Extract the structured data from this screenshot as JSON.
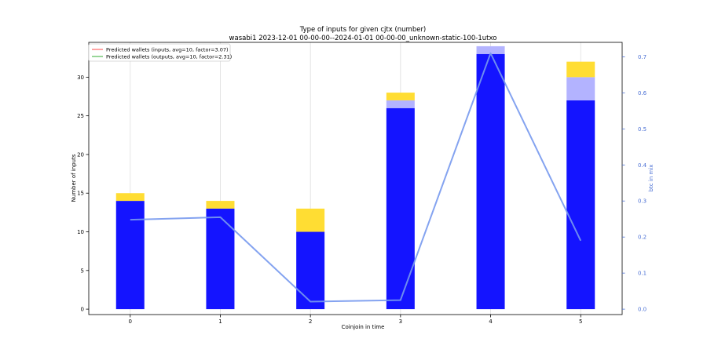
{
  "chart_data": {
    "type": "bar",
    "title": "Type of inputs for given cjtx (number)",
    "subtitle": "wasabi1 2023-12-01 00-00-00--2024-01-01 00-00-00_unknown-static-100-1utxo",
    "xlabel": "Coinjoin in time",
    "ylabel": "Number of inputs",
    "y2label": "btc in mix",
    "categories": [
      "0",
      "1",
      "2",
      "3",
      "4",
      "5"
    ],
    "ylim": [
      -0.7,
      34.5
    ],
    "y2lim": [
      -0.015,
      0.74
    ],
    "yticks": [
      "0",
      "5",
      "10",
      "15",
      "20",
      "25",
      "30"
    ],
    "y2ticks": [
      "0.0",
      "0.1",
      "0.2",
      "0.3",
      "0.4",
      "0.5",
      "0.6",
      "0.7"
    ],
    "grid": "vertical",
    "stacked": true,
    "series": [
      {
        "key": "s1",
        "values": [
          14,
          13,
          10,
          26,
          33,
          27
        ],
        "color": "#1414ff"
      },
      {
        "key": "s2",
        "values": [
          0,
          0,
          0,
          1,
          1,
          3
        ],
        "color": "#b3b3ff"
      },
      {
        "key": "s3",
        "values": [
          1,
          1,
          3,
          1,
          0,
          2
        ],
        "color": "#ffdd33"
      }
    ],
    "line_series": {
      "axis": "right",
      "color": "#7799ee",
      "values": [
        0.248,
        0.255,
        0.021,
        0.025,
        0.71,
        0.19
      ]
    },
    "legend": {
      "placement": "top-left",
      "entries": [
        {
          "name": "Predicted wallets (inputs, avg=10, factor=3.07)",
          "color": "#ff6666"
        },
        {
          "name": "Predicted wallets (outputs, avg=10, factor=2.31)",
          "color": "#55bb55"
        }
      ]
    }
  }
}
